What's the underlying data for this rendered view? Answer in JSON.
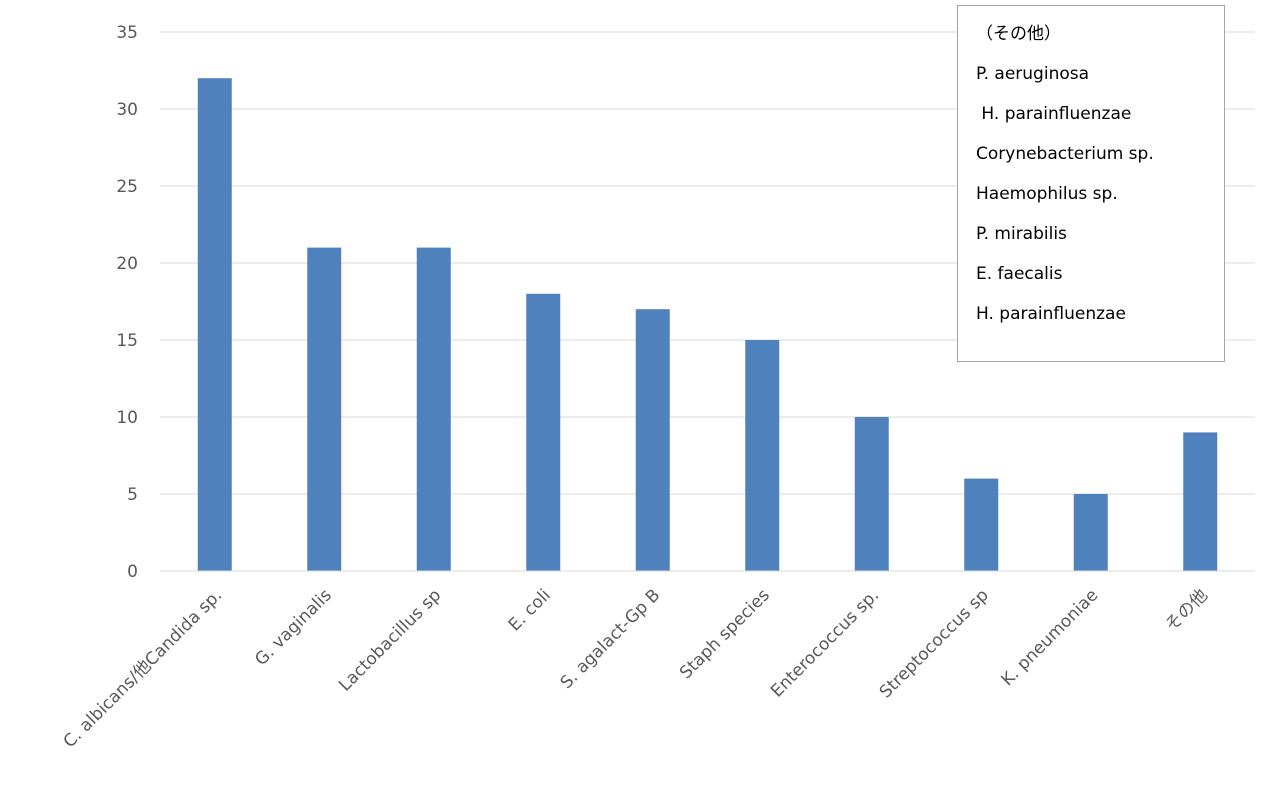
{
  "chart_data": {
    "type": "bar",
    "categories": [
      "C. albicans/他Candida sp.",
      "G. vaginalis",
      "Lactobacillus sp",
      "E. coli",
      "S. agalact-Gp B",
      "Staph species",
      "Enterococcus sp.",
      "Streptococcus sp",
      "K. pneumoniae",
      "その他"
    ],
    "values": [
      32,
      21,
      21,
      18,
      17,
      15,
      10,
      6,
      5,
      9
    ],
    "ylim": [
      0,
      35
    ],
    "yticks": [
      0,
      5,
      10,
      15,
      20,
      25,
      30,
      35
    ],
    "grid": true,
    "bar_color": "#4f81bd",
    "grid_color": "#d9d9d9",
    "title": "",
    "xlabel": "",
    "ylabel": ""
  },
  "note_box": {
    "title": "（その他）",
    "items": [
      "P. aeruginosa",
      " H. parainfluenzae",
      "Corynebacterium sp.",
      "Haemophilus sp.",
      "P. mirabilis",
      "E. faecalis",
      "H. parainfluenzae"
    ]
  }
}
